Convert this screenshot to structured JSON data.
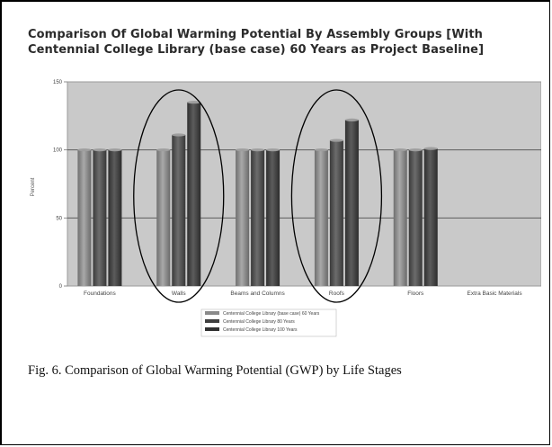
{
  "caption": "Fig. 6. Comparison of Global Warming Potential (GWP) by Life Stages",
  "chart_data": {
    "type": "bar",
    "title": "Comparison Of Global Warming Potential By Assembly Groups [With Centennial College Library (base case) 60 Years as Project Baseline]",
    "xlabel": "",
    "ylabel": "Percent",
    "ylim": [
      0,
      150
    ],
    "yticks": [
      0,
      50,
      100,
      150
    ],
    "grid": true,
    "legend_position": "bottom",
    "categories": [
      "Foundations",
      "Walls",
      "Beams and Columns",
      "Roofs",
      "Floors",
      "Extra Basic Materials"
    ],
    "series": [
      {
        "name": "Centennial College Library (base case) 60 Years",
        "values": [
          100,
          100,
          100,
          100,
          100,
          0
        ]
      },
      {
        "name": "Centennial College Library 80 Years",
        "values": [
          100,
          111,
          100,
          107,
          100,
          0
        ]
      },
      {
        "name": "Centennial College Library 100 Years",
        "values": [
          100,
          135,
          100,
          122,
          101,
          0
        ]
      }
    ],
    "annotations": [
      "ellipse around Walls",
      "ellipse around Roofs"
    ],
    "colors": {
      "plot_bg": "#c8c8c8",
      "bar_light": "#8a8a8a",
      "bar_dark": "#4a4a4a",
      "grid": "#555555"
    }
  }
}
